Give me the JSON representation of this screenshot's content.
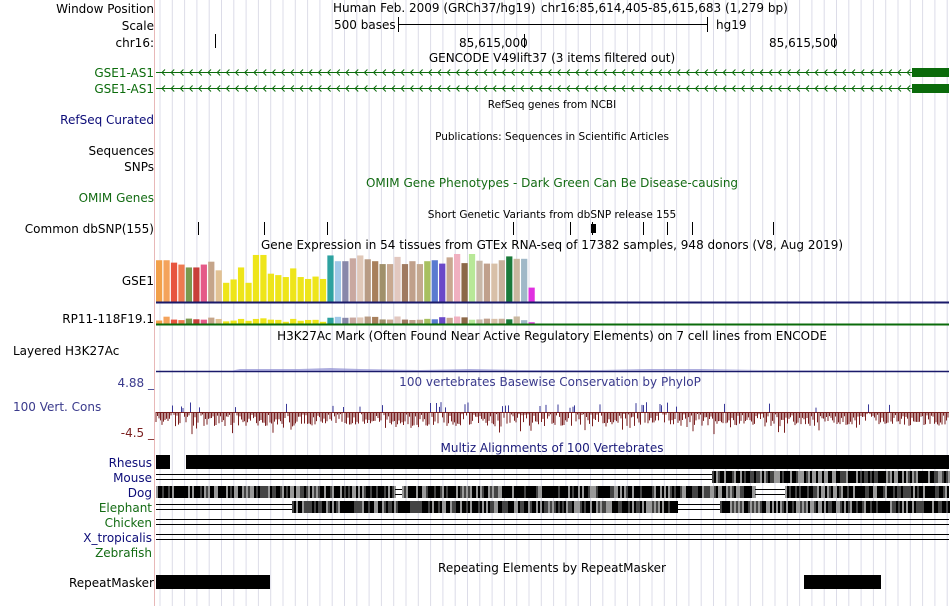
{
  "colors": {
    "gencode": "#0b6b0b",
    "refseq_label": "#0c0c78",
    "omim": "#136b13",
    "conservation_label": "#3a3a8c",
    "conservation_bar": "#7a1f1f",
    "multiz_title": "#1a1a7a",
    "separator": "#e8b8b8",
    "grid": "#d7d7e6"
  },
  "header": {
    "window_position_label": "Window Position",
    "scale_label": "Scale",
    "chrom_label": "chr16:",
    "assembly": "Human Feb. 2009 (GRCh37/hg19)",
    "position": "chr16:85,614,405-85,615,683 (1,279 bp)",
    "scale_text": "500 bases",
    "scale_db": "hg19",
    "ticks": [
      "85,615,000",
      "85,615,500"
    ]
  },
  "tracks": {
    "gencode_title": "GENCODE V49lift37 (3 items filtered out)",
    "gencode_items": [
      "GSE1-AS1",
      "GSE1-AS1"
    ],
    "refseq_title": "RefSeq genes from NCBI",
    "refseq_label": "RefSeq Curated",
    "publications_title": "Publications: Sequences in Scientific Articles",
    "sequences_label": "Sequences",
    "snps_label": "SNPs",
    "omim_label": "OMIM Genes",
    "omim_title": "OMIM Gene Phenotypes - Dark Green Can Be Disease-causing",
    "dbsnp_title": "Short Genetic Variants from dbSNP release 155",
    "dbsnp_label": "Common dbSNP(155)",
    "gtex_title": "Gene Expression in 54 tissues from GTEx RNA-seq of 17382 samples, 948 donors (V8, Aug 2019)",
    "gtex_gene1": "GSE1",
    "gtex_gene2": "RP11-118F19.1",
    "h3k27ac_title": "H3K27Ac Mark (Often Found Near Active Regulatory Elements) on 7 cell lines from ENCODE",
    "h3k27ac_label": "Layered H3K27Ac",
    "cons_max": "4.88 _",
    "cons_label": "100 Vert. Cons",
    "cons_min": "-4.5 _",
    "cons_title": "100 vertebrates Basewise Conservation by PhyloP",
    "multiz_title": "Multiz Alignments of 100 Vertebrates",
    "species": [
      {
        "name": "Rhesus",
        "color": "#0c0c78"
      },
      {
        "name": "Mouse",
        "color": "#0c0c78"
      },
      {
        "name": "Dog",
        "color": "#0c0c78"
      },
      {
        "name": "Elephant",
        "color": "#136b13"
      },
      {
        "name": "Chicken",
        "color": "#136b13"
      },
      {
        "name": "X_tropicalis",
        "color": "#0c0c78"
      },
      {
        "name": "Zebrafish",
        "color": "#136b13"
      }
    ],
    "repeat_title": "Repeating Elements by RepeatMasker",
    "repeat_label": "RepeatMasker"
  },
  "gtex_bars": [
    {
      "c": "#f2a04a",
      "v": 0.87
    },
    {
      "c": "#f4a35c",
      "v": 0.87
    },
    {
      "c": "#e7553f",
      "v": 0.82
    },
    {
      "c": "#ee7a50",
      "v": 0.78
    },
    {
      "c": "#7a9a4e",
      "v": 0.72
    },
    {
      "c": "#c83f3a",
      "v": 0.72
    },
    {
      "c": "#e55a88",
      "v": 0.78
    },
    {
      "c": "#c5a58a",
      "v": 0.84
    },
    {
      "c": "#e2c294",
      "v": 0.66
    },
    {
      "c": "#eee51a",
      "v": 0.4
    },
    {
      "c": "#eee51a",
      "v": 0.47
    },
    {
      "c": "#eee51a",
      "v": 0.72
    },
    {
      "c": "#eee51a",
      "v": 0.4
    },
    {
      "c": "#eee51a",
      "v": 0.98
    },
    {
      "c": "#eee51a",
      "v": 0.98
    },
    {
      "c": "#eee51a",
      "v": 0.59
    },
    {
      "c": "#eee51a",
      "v": 0.56
    },
    {
      "c": "#eee51a",
      "v": 0.52
    },
    {
      "c": "#eee51a",
      "v": 0.7
    },
    {
      "c": "#eee51a",
      "v": 0.52
    },
    {
      "c": "#eee51a",
      "v": 0.48
    },
    {
      "c": "#eee51a",
      "v": 0.53
    },
    {
      "c": "#eee51a",
      "v": 0.48
    },
    {
      "c": "#2ea2a0",
      "v": 0.97
    },
    {
      "c": "#a0c8e8",
      "v": 0.85
    },
    {
      "c": "#8888aa",
      "v": 0.85
    },
    {
      "c": "#c9a8a0",
      "v": 0.91
    },
    {
      "c": "#e0c8b8",
      "v": 0.97
    },
    {
      "c": "#b89b84",
      "v": 0.89
    },
    {
      "c": "#a8805c",
      "v": 0.85
    },
    {
      "c": "#a0906a",
      "v": 0.79
    },
    {
      "c": "#c8a890",
      "v": 0.79
    },
    {
      "c": "#e2c8c0",
      "v": 0.94
    },
    {
      "c": "#a07a60",
      "v": 0.79
    },
    {
      "c": "#c0a08a",
      "v": 0.85
    },
    {
      "c": "#c4a890",
      "v": 0.79
    },
    {
      "c": "#a8c060",
      "v": 0.85
    },
    {
      "c": "#5a7ad0",
      "v": 0.87
    },
    {
      "c": "#6a48c8",
      "v": 0.8
    },
    {
      "c": "#c8a890",
      "v": 0.93
    },
    {
      "c": "#f0b0c0",
      "v": 1.0
    },
    {
      "c": "#8c6848",
      "v": 0.81
    },
    {
      "c": "#b8e898",
      "v": 1.0
    },
    {
      "c": "#c8b8a8",
      "v": 0.86
    },
    {
      "c": "#c0a08c",
      "v": 0.8
    },
    {
      "c": "#d8c0a8",
      "v": 0.8
    },
    {
      "c": "#c8b09a",
      "v": 0.87
    },
    {
      "c": "#1a7a3a",
      "v": 0.95
    },
    {
      "c": "#cab8a0",
      "v": 0.9
    },
    {
      "c": "#a0b8c8",
      "v": 0.9
    },
    {
      "c": "#e030e0",
      "v": 0.3
    }
  ]
}
